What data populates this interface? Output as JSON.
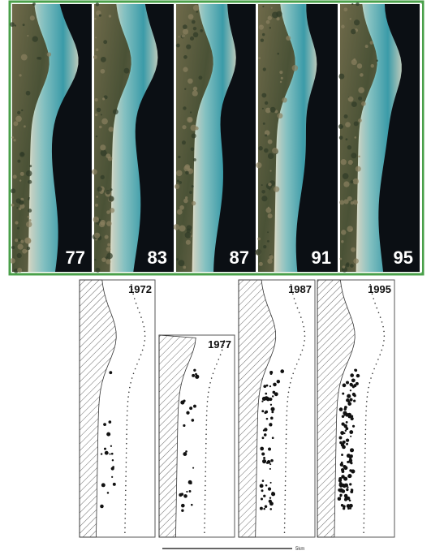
{
  "satellite_panels": [
    {
      "label": "77"
    },
    {
      "label": "83"
    },
    {
      "label": "87"
    },
    {
      "label": "91"
    },
    {
      "label": "95"
    }
  ],
  "map_panels": [
    {
      "label": "1972"
    },
    {
      "label": "1977"
    },
    {
      "label": "1987"
    },
    {
      "label": "1995"
    }
  ],
  "scale_bar": {
    "label": "5km"
  }
}
